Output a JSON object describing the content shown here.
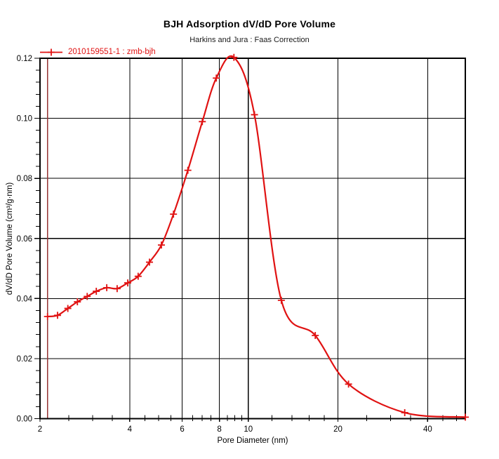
{
  "chart_data": {
    "type": "line",
    "title": "BJH Adsorption dV/dD Pore Volume",
    "subtitle": "Harkins and Jura : Faas Correction",
    "xlabel": "Pore Diameter (nm)",
    "ylabel": "dV/dD Pore Volume (cm³/g·nm)",
    "x_scale": "log",
    "xlim": [
      2,
      53.5
    ],
    "ylim": [
      0,
      0.12
    ],
    "x_major_ticks": [
      2,
      4,
      6,
      8,
      10,
      20,
      40
    ],
    "x_minor_ticks": [
      2.5,
      3,
      3.5,
      4.5,
      5,
      5.5,
      6.5,
      7,
      7.5,
      8.5,
      9,
      9.5,
      12,
      14,
      16,
      18,
      25,
      30,
      35,
      45,
      50
    ],
    "y_major_ticks": [
      0,
      0.02,
      0.04,
      0.06,
      0.08,
      0.1,
      0.12
    ],
    "y_minor_step": 0.004,
    "grid": true,
    "legend": {
      "position": "top-left",
      "entries": [
        {
          "label": "2010159551-1 : zmb-bjh",
          "marker": "plus",
          "color": "#e01212"
        }
      ]
    },
    "series": [
      {
        "name": "2010159551-1 : zmb-bjh",
        "marker": "plus",
        "color": "#e01212",
        "x": [
          2.12,
          2.29,
          2.48,
          2.67,
          2.88,
          3.09,
          3.35,
          3.63,
          3.94,
          4.27,
          4.66,
          5.11,
          5.61,
          6.27,
          7.01,
          7.81,
          8.95,
          10.49,
          12.91,
          16.78,
          21.7,
          33.5,
          53.5
        ],
        "y": [
          0.034,
          0.0344,
          0.0367,
          0.0389,
          0.0407,
          0.0424,
          0.0436,
          0.0433,
          0.0452,
          0.0474,
          0.0521,
          0.0578,
          0.0681,
          0.0827,
          0.0989,
          0.1134,
          0.1203,
          0.1012,
          0.0394,
          0.0277,
          0.0115,
          0.002,
          0.0005
        ]
      }
    ],
    "annotations": [
      {
        "type": "vline",
        "x": 2.12,
        "color": "#943232"
      }
    ],
    "colors": {
      "curve": "#e01212",
      "grid": "#000000",
      "frame": "#000000",
      "vline": "#943232",
      "text": "#000000"
    }
  }
}
